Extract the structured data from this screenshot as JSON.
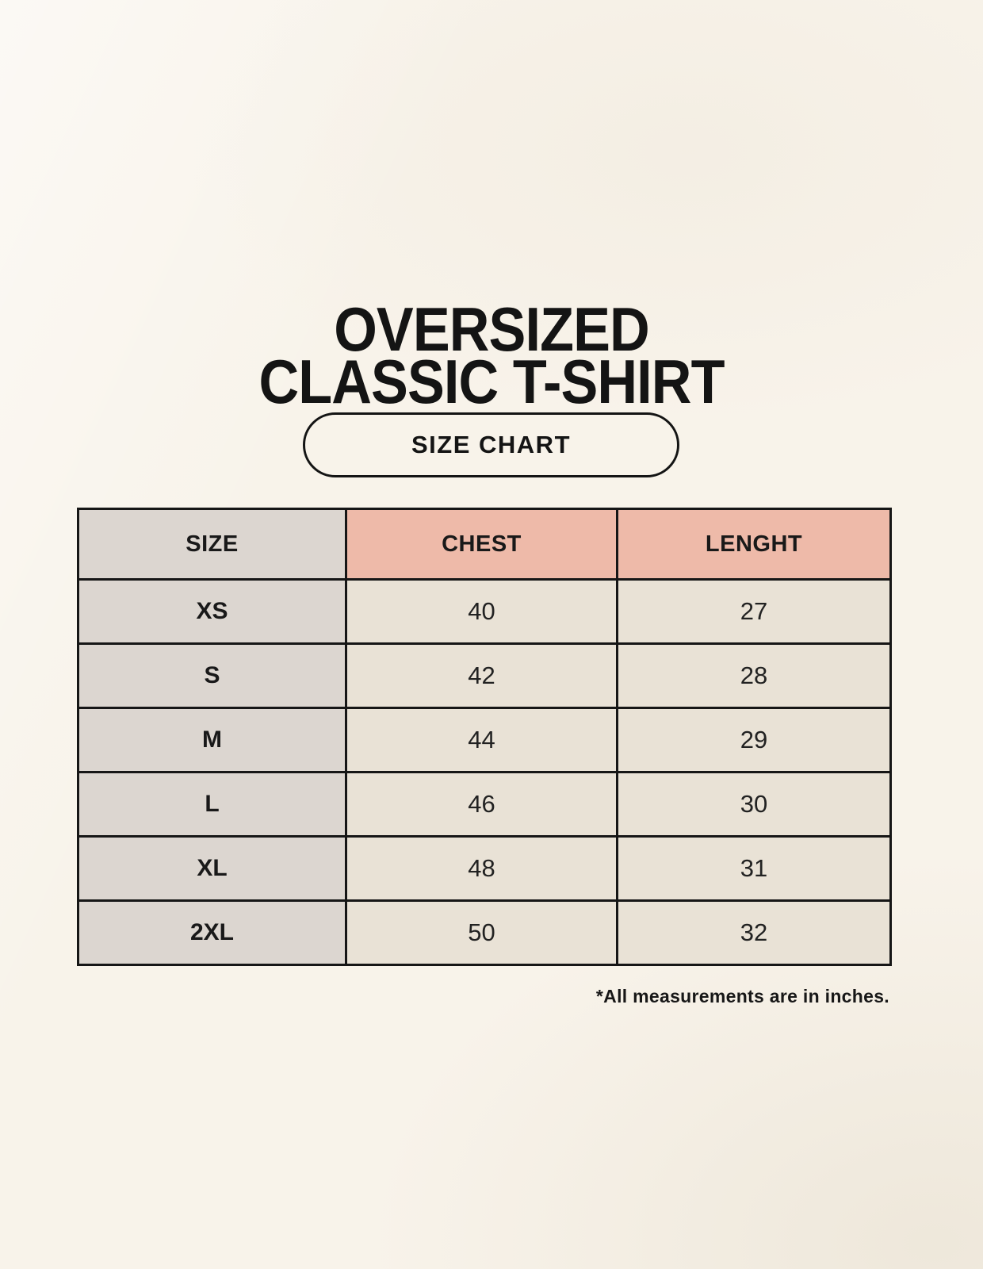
{
  "page": {
    "title": {
      "line1": "OVERSIZED",
      "line2": "CLASSIC T-SHIRT"
    },
    "badge": {
      "label": "SIZE CHART"
    },
    "footnote": "*All measurements are in inches."
  },
  "chart_data": {
    "type": "table",
    "title": "OVERSIZED CLASSIC T-SHIRT",
    "subtitle": "SIZE CHART",
    "columns": [
      "SIZE",
      "CHEST",
      "LENGHT"
    ],
    "rows": [
      [
        "XS",
        "40",
        "27"
      ],
      [
        "S",
        "42",
        "28"
      ],
      [
        "M",
        "44",
        "29"
      ],
      [
        "L",
        "46",
        "30"
      ],
      [
        "XL",
        "48",
        "31"
      ],
      [
        "2XL",
        "50",
        "32"
      ]
    ],
    "note": "*All measurements are in inches.",
    "units": "inches"
  },
  "colors": {
    "background": "#f8f3ea",
    "size_column_bg": "#dcd6d0",
    "measure_header_bg": "#eebaa9",
    "value_cell_bg": "#e9e2d6",
    "border": "#161616",
    "text": "#1b1b1b"
  }
}
